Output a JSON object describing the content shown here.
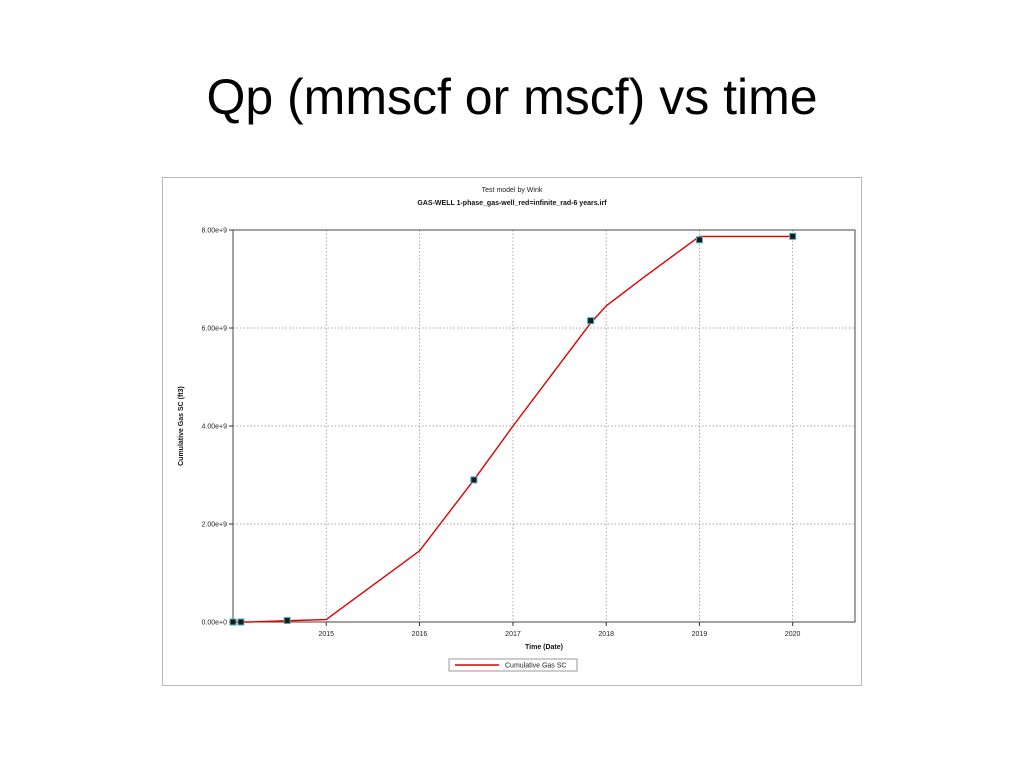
{
  "slide": {
    "title": "Qp (mmscf or mscf) vs time"
  },
  "chart_data": {
    "type": "line",
    "title": "GAS-WELL 1-phase_gas-well_red=infinite_rad-6 years.irf",
    "subtitle": "Test model by Wink",
    "xlabel": "Time (Date)",
    "ylabel": "Cumulative Gas SC (ft3)",
    "xlim": [
      "2014-01-01",
      "2020-09-01"
    ],
    "ylim": [
      0,
      8000000000
    ],
    "x_ticks": [
      "2015",
      "2016",
      "2017",
      "2018",
      "2019",
      "2020"
    ],
    "y_ticks": [
      "0.00e+0",
      "2.00e+9",
      "4.00e+9",
      "6.00e+9",
      "8.00e+9"
    ],
    "grid": true,
    "legend_position": "bottom-center",
    "series": [
      {
        "name": "Cumulative Gas SC",
        "color": "#e00000",
        "x": [
          "2014-01-01",
          "2014-03-01",
          "2014-09-01",
          "2015-01-01",
          "2016-01-01",
          "2016-08-01",
          "2017-01-01",
          "2017-11-01",
          "2018-01-01",
          "2018-06-01",
          "2019-01-01",
          "2020-01-01"
        ],
        "values": [
          0,
          0,
          30000000,
          50000000,
          1450000000,
          2900000000,
          4000000000,
          6100000000,
          6450000000,
          7050000000,
          7870000000,
          7870000000
        ]
      }
    ],
    "markers": {
      "x": [
        "2014-01-01",
        "2014-02-01",
        "2014-08-01",
        "2016-08-01",
        "2017-11-01",
        "2019-01-01",
        "2020-01-01"
      ],
      "values": [
        0,
        0,
        30000000,
        2900000000,
        6150000000,
        7800000000,
        7870000000
      ]
    }
  }
}
